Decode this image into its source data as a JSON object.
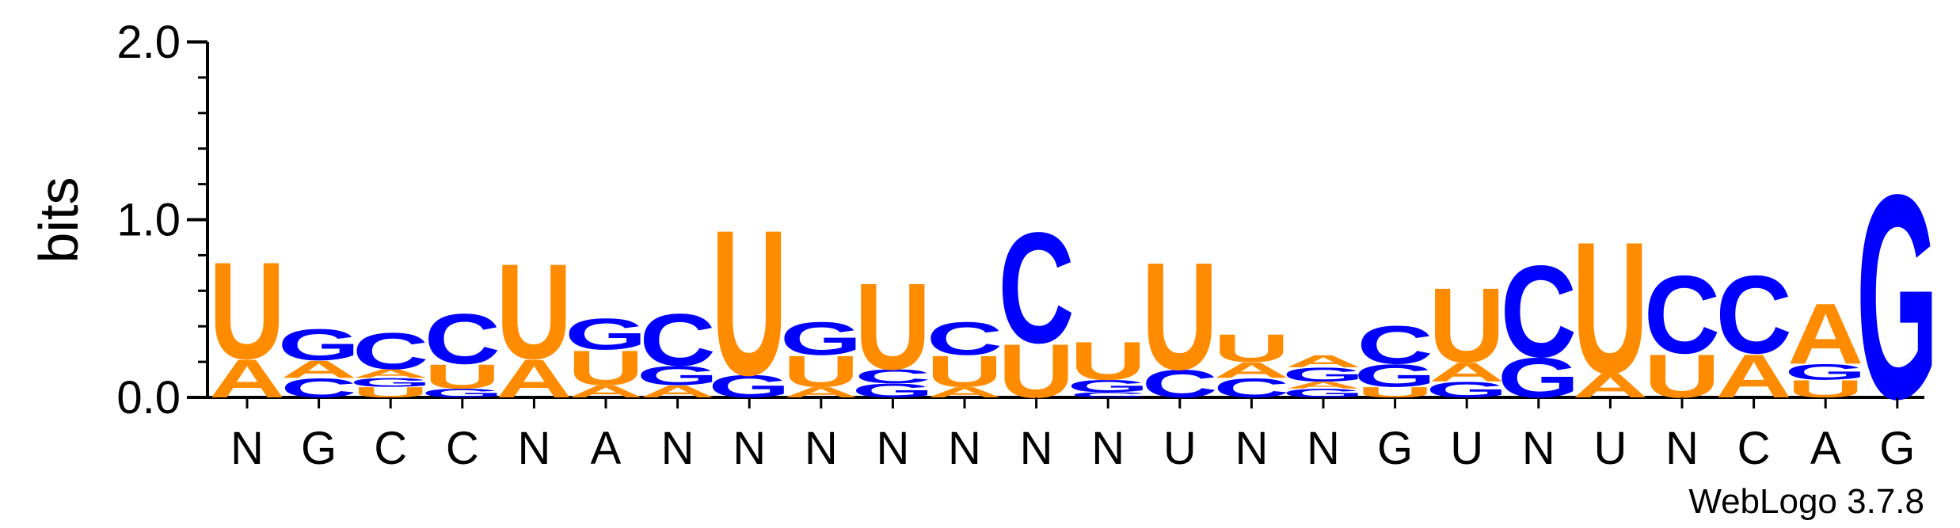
{
  "chart_data": {
    "type": "sequence-logo",
    "ylabel": "bits",
    "ylim": [
      0,
      2.0
    ],
    "yticks": [
      "0.0",
      "1.0",
      "2.0"
    ],
    "colors": {
      "A": "#FF8C00",
      "U": "#FF8C00",
      "C": "#0000FF",
      "G": "#0000FF"
    },
    "positions": [
      {
        "label": "N",
        "stack": [
          [
            "A",
            0.22
          ],
          [
            "U",
            0.56
          ]
        ]
      },
      {
        "label": "G",
        "stack": [
          [
            "C",
            0.11
          ],
          [
            "A",
            0.1
          ],
          [
            "G",
            0.18
          ]
        ]
      },
      {
        "label": "C",
        "stack": [
          [
            "U",
            0.06
          ],
          [
            "G",
            0.05
          ],
          [
            "A",
            0.05
          ],
          [
            "C",
            0.21
          ]
        ]
      },
      {
        "label": "C",
        "stack": [
          [
            "G",
            0.05
          ],
          [
            "U",
            0.14
          ],
          [
            "C",
            0.29
          ]
        ]
      },
      {
        "label": "N",
        "stack": [
          [
            "A",
            0.22
          ],
          [
            "U",
            0.55
          ]
        ]
      },
      {
        "label": "A",
        "stack": [
          [
            "A",
            0.07
          ],
          [
            "U",
            0.2
          ],
          [
            "G",
            0.18
          ]
        ]
      },
      {
        "label": "N",
        "stack": [
          [
            "A",
            0.07
          ],
          [
            "G",
            0.11
          ],
          [
            "C",
            0.3
          ]
        ]
      },
      {
        "label": "N",
        "stack": [
          [
            "G",
            0.13
          ],
          [
            "U",
            0.84
          ]
        ]
      },
      {
        "label": "N",
        "stack": [
          [
            "A",
            0.06
          ],
          [
            "U",
            0.18
          ],
          [
            "G",
            0.19
          ]
        ]
      },
      {
        "label": "N",
        "stack": [
          [
            "G",
            0.08
          ],
          [
            "C",
            0.08
          ],
          [
            "U",
            0.5
          ]
        ]
      },
      {
        "label": "N",
        "stack": [
          [
            "A",
            0.06
          ],
          [
            "U",
            0.18
          ],
          [
            "C",
            0.19
          ]
        ]
      },
      {
        "label": "N",
        "stack": [
          [
            "U",
            0.31
          ],
          [
            "C",
            0.64
          ]
        ]
      },
      {
        "label": "N",
        "stack": [
          [
            "C",
            0.03
          ],
          [
            "G",
            0.07
          ],
          [
            "U",
            0.22
          ]
        ]
      },
      {
        "label": "U",
        "stack": [
          [
            "C",
            0.16
          ],
          [
            "U",
            0.62
          ]
        ]
      },
      {
        "label": "N",
        "stack": [
          [
            "C",
            0.11
          ],
          [
            "A",
            0.09
          ],
          [
            "U",
            0.16
          ]
        ]
      },
      {
        "label": "N",
        "stack": [
          [
            "G",
            0.05
          ],
          [
            "A",
            0.04
          ],
          [
            "G",
            0.08
          ],
          [
            "A",
            0.07
          ]
        ]
      },
      {
        "label": "G",
        "stack": [
          [
            "U",
            0.06
          ],
          [
            "G",
            0.13
          ],
          [
            "C",
            0.22
          ]
        ]
      },
      {
        "label": "U",
        "stack": [
          [
            "G",
            0.09
          ],
          [
            "A",
            0.11
          ],
          [
            "U",
            0.43
          ]
        ]
      },
      {
        "label": "N",
        "stack": [
          [
            "G",
            0.23
          ],
          [
            "C",
            0.53
          ]
        ]
      },
      {
        "label": "U",
        "stack": [
          [
            "A",
            0.14
          ],
          [
            "U",
            0.76
          ]
        ]
      },
      {
        "label": "N",
        "stack": [
          [
            "U",
            0.25
          ],
          [
            "C",
            0.45
          ]
        ]
      },
      {
        "label": "C",
        "stack": [
          [
            "A",
            0.25
          ],
          [
            "C",
            0.45
          ]
        ]
      },
      {
        "label": "A",
        "stack": [
          [
            "U",
            0.1
          ],
          [
            "G",
            0.09
          ],
          [
            "A",
            0.35
          ]
        ]
      },
      {
        "label": "G",
        "stack": [
          [
            "G",
            1.18
          ]
        ]
      }
    ],
    "footer": "WebLogo 3.7.8"
  }
}
